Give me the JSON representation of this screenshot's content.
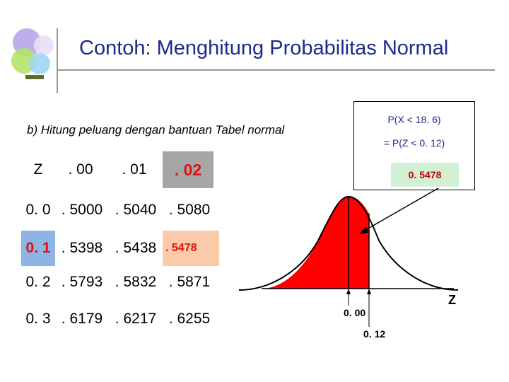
{
  "slide": {
    "title": "Contoh: Menghitung Probabilitas Normal",
    "subtitle": "b) Hitung peluang dengan bantuan Tabel normal"
  },
  "ztable": {
    "header": [
      "Z",
      ". 00",
      ". 01",
      ". 02"
    ],
    "rows": [
      [
        "0. 0",
        ". 5000",
        ". 5040",
        ". 5080"
      ],
      [
        "0. 1",
        ". 5398",
        ". 5438",
        ". 5478"
      ],
      [
        "0. 2",
        ". 5793",
        ". 5832",
        ". 5871"
      ],
      [
        "0. 3",
        ". 6179",
        ". 6217",
        ". 6255"
      ]
    ],
    "highlight": {
      "column": ". 02",
      "row": "0. 1",
      "cell": ". 5478"
    }
  },
  "probability_box": {
    "line1": "P(X < 18. 6)",
    "line2": "= P(Z < 0. 12)",
    "value": "0. 5478"
  },
  "graph": {
    "axis_label": "Z",
    "mark_mean": "0. 00",
    "mark_z": "0. 12"
  },
  "colors": {
    "title": "#1c2a8c",
    "shaded_area": "#ff0000",
    "highlight_column": "#a6a6a6",
    "highlight_row": "#8eb4e3",
    "highlight_cell": "#fbcaa8",
    "result_box": "#d4f0d4"
  }
}
